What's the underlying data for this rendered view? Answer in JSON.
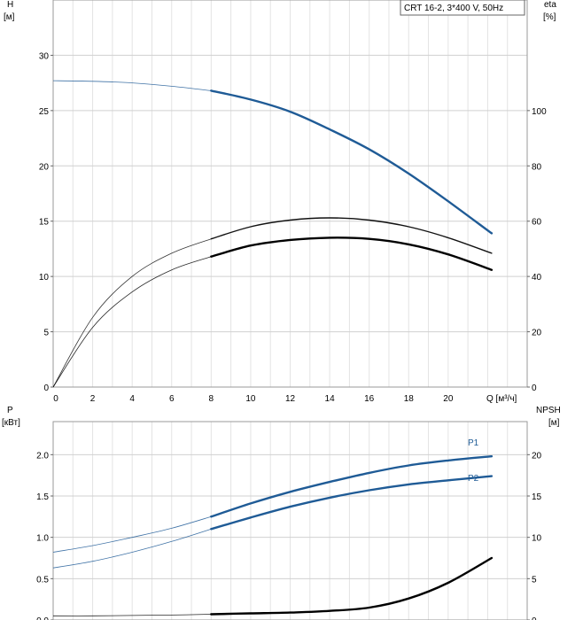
{
  "chart_data": [
    {
      "type": "line",
      "title": "CRT 16-2, 3*400 V, 50Hz",
      "y_left_label": "H",
      "y_left_unit": "[м]",
      "y_right_label": "eta",
      "y_right_unit": "[%]",
      "x_label": "Q [м³/ч]",
      "x_ticks": [
        "0",
        "2",
        "4",
        "6",
        "8",
        "10",
        "12",
        "14",
        "16",
        "18",
        "20"
      ],
      "y_left_ticks": [
        "0",
        "5",
        "10",
        "15",
        "20",
        "25",
        "30"
      ],
      "y_right_ticks": [
        "0",
        "20",
        "40",
        "60",
        "80",
        "100"
      ],
      "xlim": [
        0,
        24
      ],
      "ylim_left": [
        0,
        35
      ],
      "ylim_right": [
        0,
        140
      ],
      "grid": true,
      "series": [
        {
          "axis": "left",
          "color": "#1f5b96",
          "x": [
            0,
            2,
            4,
            6,
            8,
            10,
            12,
            14,
            16,
            18,
            20,
            22.2
          ],
          "y": [
            27.7,
            27.65,
            27.5,
            27.2,
            26.8,
            26.0,
            24.9,
            23.3,
            21.5,
            19.3,
            16.8,
            13.9
          ],
          "highlight_from": 8
        },
        {
          "axis": "left",
          "color": "#111111",
          "x": [
            0,
            2,
            4,
            6,
            8,
            10,
            12,
            14,
            16,
            18,
            20,
            22.2
          ],
          "y": [
            0,
            6.3,
            10.0,
            12.1,
            13.4,
            14.5,
            15.1,
            15.3,
            15.1,
            14.5,
            13.5,
            12.1
          ],
          "highlight_from": 8
        },
        {
          "axis": "left",
          "color": "#000000",
          "x": [
            0,
            2,
            4,
            6,
            8,
            10,
            12,
            14,
            16,
            18,
            20,
            22.2
          ],
          "y": [
            0,
            5.4,
            8.6,
            10.6,
            11.8,
            12.8,
            13.3,
            13.5,
            13.4,
            12.9,
            12.0,
            10.6
          ],
          "highlight_from": 8
        }
      ]
    },
    {
      "type": "line",
      "y_left_label": "P",
      "y_left_unit": "[кВт]",
      "y_right_label": "NPSH",
      "y_right_unit": "[м]",
      "y_left_ticks": [
        "0.0",
        "0.5",
        "1.0",
        "1.5",
        "2.0"
      ],
      "y_right_ticks": [
        "0",
        "5",
        "10",
        "15",
        "20"
      ],
      "xlim": [
        0,
        24
      ],
      "ylim_left": [
        0,
        2.4
      ],
      "ylim_right": [
        0,
        24
      ],
      "grid": true,
      "series": [
        {
          "name": "P1",
          "axis": "left",
          "color": "#1f5b96",
          "x": [
            0,
            2,
            4,
            6,
            8,
            10,
            12,
            14,
            16,
            18,
            20,
            22.2
          ],
          "y": [
            0.82,
            0.9,
            1.0,
            1.11,
            1.25,
            1.41,
            1.55,
            1.67,
            1.78,
            1.87,
            1.93,
            1.98
          ],
          "highlight_from": 8
        },
        {
          "name": "P2",
          "axis": "left",
          "color": "#1f5b96",
          "x": [
            0,
            2,
            4,
            6,
            8,
            10,
            12,
            14,
            16,
            18,
            20,
            22.2
          ],
          "y": [
            0.63,
            0.71,
            0.82,
            0.95,
            1.1,
            1.24,
            1.37,
            1.48,
            1.57,
            1.64,
            1.69,
            1.74
          ],
          "highlight_from": 8
        },
        {
          "axis": "right",
          "color": "#000000",
          "x": [
            0,
            2,
            4,
            6,
            8,
            10,
            12,
            14,
            16,
            18,
            20,
            22.2
          ],
          "y": [
            0.5,
            0.5,
            0.55,
            0.6,
            0.7,
            0.8,
            0.9,
            1.1,
            1.5,
            2.6,
            4.5,
            7.5
          ],
          "highlight_from": 8
        }
      ]
    }
  ]
}
